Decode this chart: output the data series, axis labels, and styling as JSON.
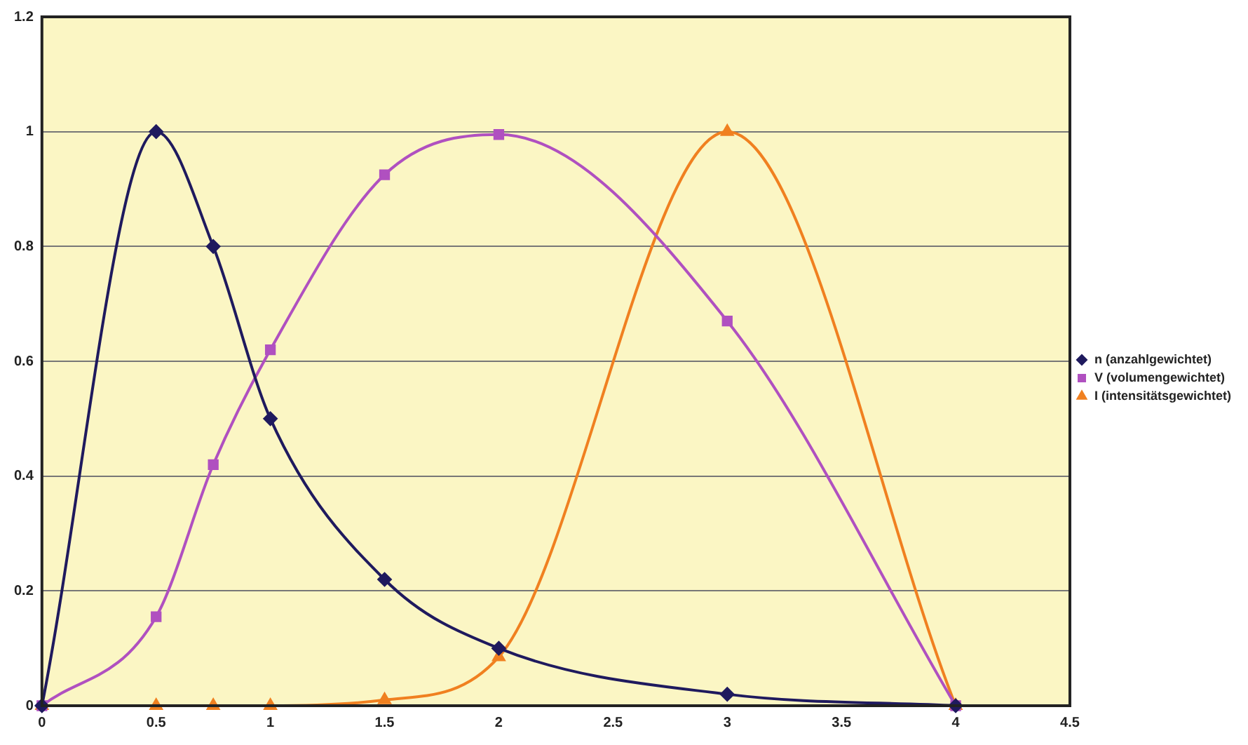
{
  "chart_data": {
    "type": "line",
    "xlim": [
      0,
      4.5
    ],
    "xticks": [
      0,
      0.5,
      1,
      1.5,
      2,
      2.5,
      3,
      3.5,
      4,
      4.5
    ],
    "ylim": [
      0,
      1.2
    ],
    "yticks": [
      0,
      0.2,
      0.4,
      0.6,
      0.8,
      1,
      1.2
    ],
    "grid": "y",
    "legend": "right",
    "line_style": "solid",
    "series": [
      {
        "name": "n (anzahlgewichtet)",
        "color": "#1f1a5e",
        "marker": "diamond",
        "x": [
          0,
          0.5,
          0.75,
          1,
          1.5,
          2,
          3,
          4
        ],
        "values": [
          0,
          1.0,
          0.8,
          0.5,
          0.22,
          0.1,
          0.02,
          0
        ]
      },
      {
        "name": "V (volumengewichtet)",
        "color": "#b050c0",
        "marker": "square",
        "x": [
          0,
          0.5,
          0.75,
          1,
          1.5,
          2,
          3,
          4
        ],
        "values": [
          0,
          0.155,
          0.42,
          0.62,
          0.925,
          0.995,
          0.67,
          0
        ]
      },
      {
        "name": "I (intensitätsgewichtet)",
        "color": "#f08020",
        "marker": "triangle",
        "x": [
          0,
          0.5,
          0.75,
          1,
          1.5,
          2,
          3,
          4
        ],
        "values": [
          0,
          0,
          0,
          0,
          0.01,
          0.085,
          1.0,
          0
        ]
      }
    ]
  }
}
